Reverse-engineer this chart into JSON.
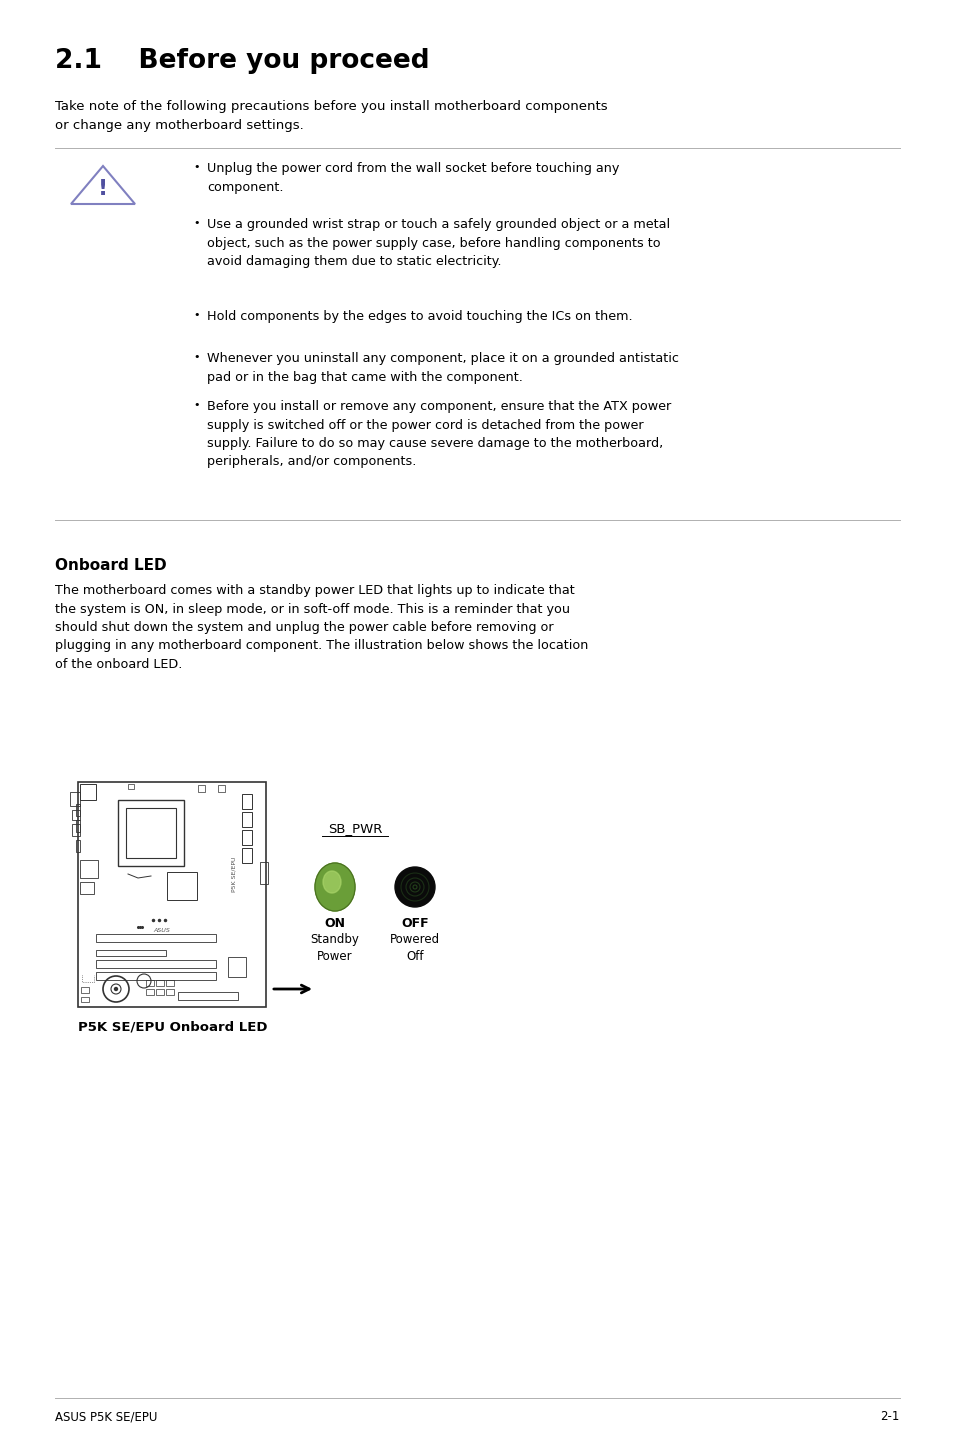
{
  "bg_color": "#ffffff",
  "title": "2.1    Before you proceed",
  "intro_text": "Take note of the following precautions before you install motherboard components\nor change any motherboard settings.",
  "bullet_points": [
    "Unplug the power cord from the wall socket before touching any\ncomponent.",
    "Use a grounded wrist strap or touch a safely grounded object or a metal\nobject, such as the power supply case, before handling components to\navoid damaging them due to static electricity.",
    "Hold components by the edges to avoid touching the ICs on them.",
    "Whenever you uninstall any component, place it on a grounded antistatic\npad or in the bag that came with the component.",
    "Before you install or remove any component, ensure that the ATX power\nsupply is switched off or the power cord is detached from the power\nsupply. Failure to do so may cause severe damage to the motherboard,\nperipherals, and/or components."
  ],
  "section2_title": "Onboard LED",
  "section2_text": "The motherboard comes with a standby power LED that lights up to indicate that\nthe system is ON, in sleep mode, or in soft-off mode. This is a reminder that you\nshould shut down the system and unplug the power cable before removing or\nplugging in any motherboard component. The illustration below shows the location\nof the onboard LED.",
  "sb_pwr_label": "SB_PWR",
  "on_label": "ON",
  "on_sub": "Standby\nPower",
  "off_label": "OFF",
  "off_sub": "Powered\nOff",
  "caption": "P5K SE/EPU Onboard LED",
  "footer_left": "ASUS P5K SE/EPU",
  "footer_right": "2-1",
  "line_color": "#b0b0b0",
  "text_color": "#000000",
  "bullet_color": "#000000",
  "warning_triangle_color": "#8080c0",
  "warning_exclaim_color": "#5050a0",
  "on_led_color": "#7ab648",
  "on_led_highlight": "#b0e080",
  "off_led_color": "#111111",
  "off_led_ring_color": "#2a5020",
  "board_color": "#333333"
}
